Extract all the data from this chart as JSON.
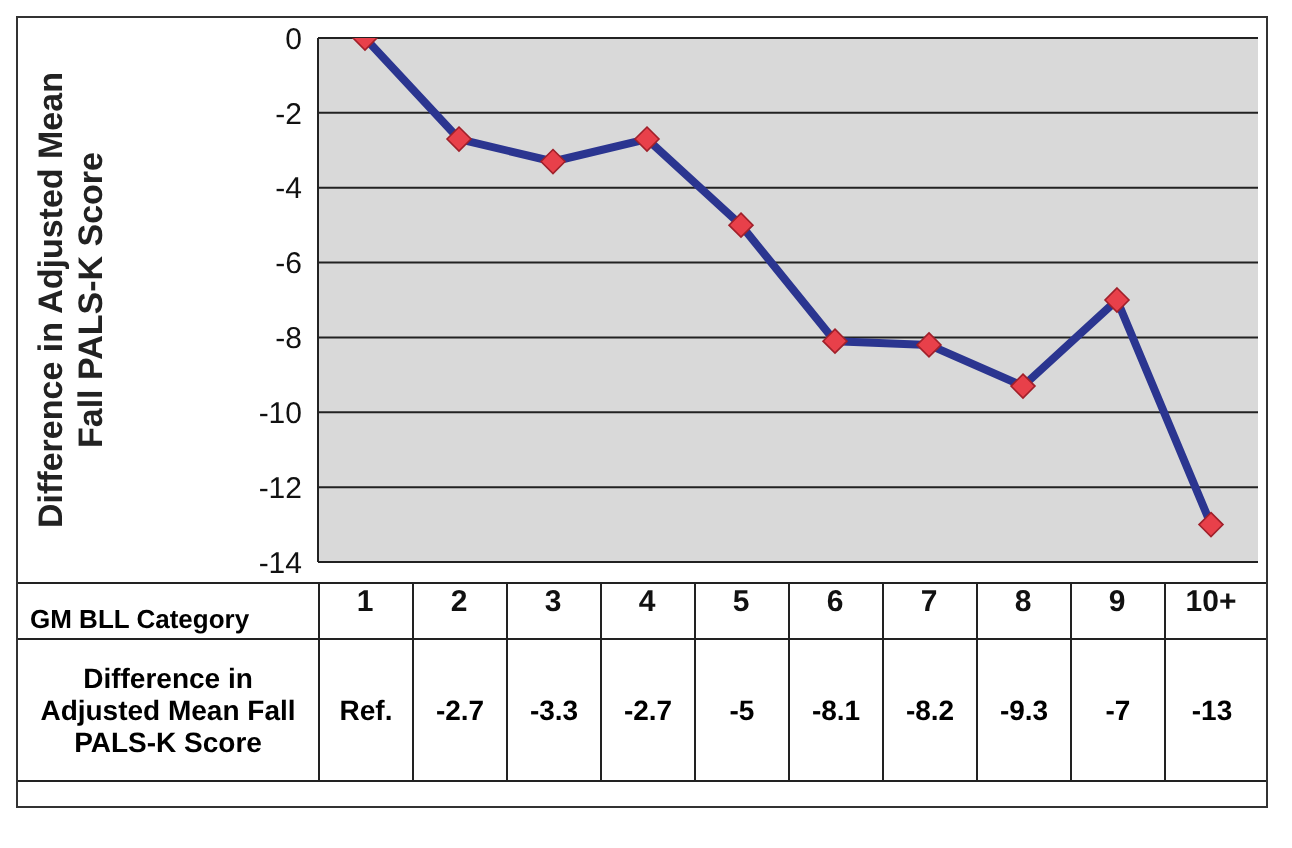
{
  "chart_data": {
    "type": "line",
    "ylabel": "Difference in Adjusted Mean Fall PALS-K Score",
    "xlabel": "GM BLL Category",
    "categories": [
      "1",
      "2",
      "3",
      "4",
      "5",
      "6",
      "7",
      "8",
      "9",
      "10+"
    ],
    "series": [
      {
        "color": "#2b3590",
        "colors": [
          "#e8404a",
          "#e8404a",
          "#e8404a",
          "#e8404a",
          "#e8404a",
          "#e8404a",
          "#e8404a",
          "#e8404a",
          "#e8404a",
          "#e8404a"
        ],
        "values": [
          0,
          -2.7,
          -3.3,
          -2.7,
          -5,
          -8.1,
          -8.2,
          -9.3,
          -7,
          -13
        ],
        "value_labels": [
          "Ref.",
          "-2.7",
          "-3.3",
          "-2.7",
          "-5",
          "-8.1",
          "-8.2",
          "-9.3",
          "-7",
          "-13"
        ]
      }
    ],
    "marker": "diamond",
    "ylim": [
      -14,
      0
    ],
    "yticks": [
      0,
      -2,
      -4,
      -6,
      -8,
      -10,
      -12,
      -14
    ],
    "grid": "y",
    "legend": false,
    "annotations": [
      "Difference in Adjusted Mean Fall PALS-K Score"
    ]
  }
}
